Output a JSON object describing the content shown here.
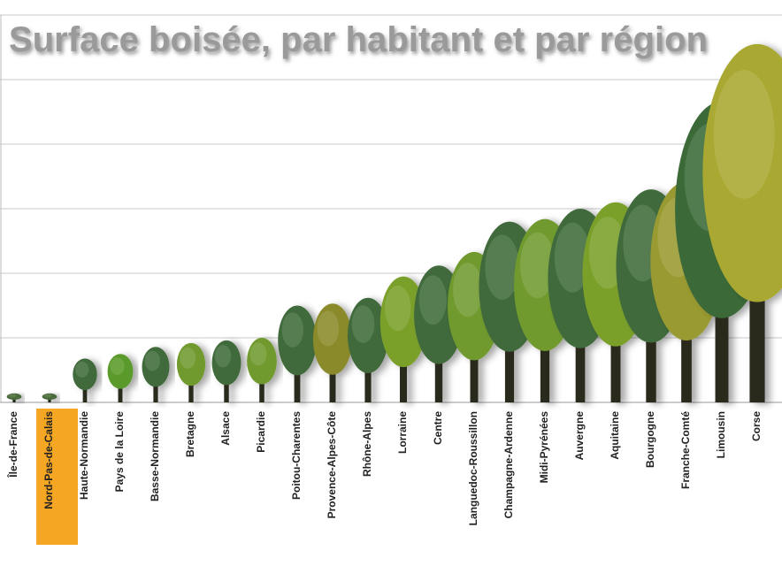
{
  "chart_data": {
    "type": "tree-pictogram",
    "title": "Surface boisée, par habitant et par région",
    "categories": [
      "Île-de-France",
      "Nord-Pas-de-Calais",
      "Haute-Normandie",
      "Pays de la Loire",
      "Basse-Normandie",
      "Bretagne",
      "Alsace",
      "Picardie",
      "Poitou-Charentes",
      "Provence-Alpes-Côte",
      "Rhône-Alpes",
      "Lorraine",
      "Centre",
      "Languedoc-Roussillon",
      "Champagne-Ardenne",
      "Midi-Pyrénées",
      "Auvergne",
      "Aquitaine",
      "Bourgogne",
      "Franche-Comté",
      "Limousin",
      "Corse"
    ],
    "values": [
      0.14,
      0.14,
      0.68,
      0.75,
      0.86,
      0.92,
      0.96,
      1.0,
      1.5,
      1.53,
      1.62,
      1.95,
      2.12,
      2.33,
      2.8,
      2.84,
      3.0,
      3.1,
      3.3,
      3.42,
      4.66,
      5.55
    ],
    "colors": [
      "#4a6a3a",
      "#4a6a3a",
      "#3f6b3a",
      "#5a9a2a",
      "#3f6b3a",
      "#6f9a2e",
      "#3f6b3a",
      "#6f9a2e",
      "#3f6b3a",
      "#8a8a2a",
      "#3f6b3a",
      "#7aa02a",
      "#3f6b3a",
      "#6f9a2e",
      "#3f6b3a",
      "#6f9a2e",
      "#3f6b3a",
      "#7aa02a",
      "#3f6b3a",
      "#9a9a30",
      "#3a6a38",
      "#a8a830"
    ],
    "ylim": [
      0,
      6
    ],
    "yticks": [
      0,
      1,
      2,
      3,
      4,
      5,
      6
    ],
    "grid": true,
    "highlight": 1,
    "highlight_color": "#f5a623"
  }
}
